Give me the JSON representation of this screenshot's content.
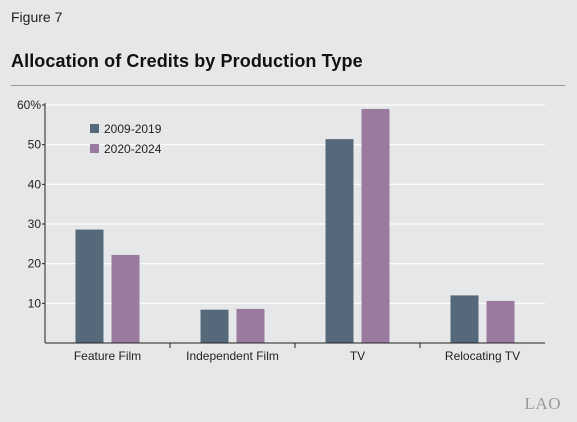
{
  "figure_label": "Figure 7",
  "logo_text": "LAO",
  "chart_data": {
    "type": "bar",
    "title": "Allocation of Credits by Production Type",
    "xlabel": "",
    "ylabel": "",
    "categories": [
      "Feature Film",
      "Independent Film",
      "TV",
      "Relocating TV"
    ],
    "series": [
      {
        "name": "2009-2019",
        "values": [
          28.6,
          8.4,
          51.4,
          12.0
        ],
        "color": "#56697a"
      },
      {
        "name": "2020-2024",
        "values": [
          22.2,
          8.6,
          59.0,
          10.6
        ],
        "color": "#9b7a9f"
      }
    ],
    "ylim": [
      0,
      60
    ],
    "yticks": [
      10,
      20,
      30,
      40,
      50,
      60
    ],
    "ytick_labels": [
      "10",
      "20",
      "30",
      "40",
      "50",
      "60%"
    ],
    "grid": true,
    "legend_position": "top-left"
  }
}
